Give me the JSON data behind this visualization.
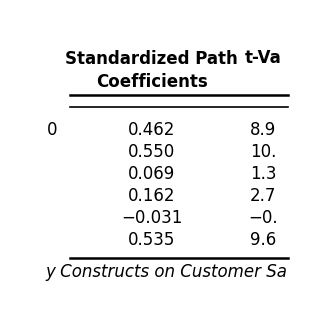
{
  "header_col1": "Standardized Path\nCoefficients",
  "header_col2": "t-Va",
  "rows": [
    {
      "col1": "0.462",
      "col2": "8.9"
    },
    {
      "col1": "0.550",
      "col2": "10."
    },
    {
      "col1": "0.069",
      "col2": "1.3"
    },
    {
      "col1": "0.162",
      "col2": "2.7"
    },
    {
      "col1": "−0.031",
      "col2": "−0."
    },
    {
      "col1": "0.535",
      "col2": "9.6"
    }
  ],
  "left_col_partial": "0",
  "footer_text": "y Constructs on Customer Sa",
  "bg_color": "#ffffff",
  "text_color": "#000000",
  "header_fontsize": 12,
  "cell_fontsize": 12,
  "footer_fontsize": 12
}
